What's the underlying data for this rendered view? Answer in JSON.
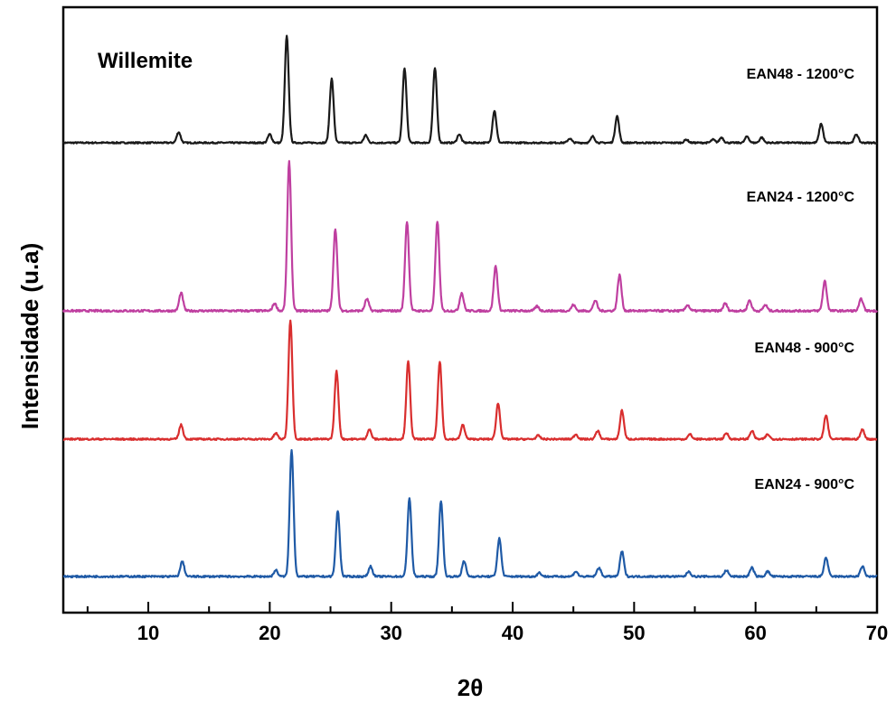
{
  "chart_data": {
    "type": "line",
    "xlabel": "2θ",
    "ylabel": "Intensidade (u.a)",
    "xlim": [
      3,
      70
    ],
    "xticks": [
      10,
      20,
      30,
      40,
      50,
      60,
      70
    ],
    "y_ticks_shown": false,
    "grid": false,
    "legend": "none (series labelled inline at right)",
    "annotation": "Willemite",
    "series": [
      {
        "name": "EAN48 - 1200°C",
        "color": "#1a1a1a",
        "baseline": 0,
        "peaks": [
          [
            12.5,
            10
          ],
          [
            20.0,
            8
          ],
          [
            21.4,
            100
          ],
          [
            25.1,
            60
          ],
          [
            27.9,
            7
          ],
          [
            31.1,
            70
          ],
          [
            33.6,
            70
          ],
          [
            35.6,
            8
          ],
          [
            38.5,
            30
          ],
          [
            44.7,
            4
          ],
          [
            46.6,
            6
          ],
          [
            48.6,
            25
          ],
          [
            54.3,
            3
          ],
          [
            56.5,
            3
          ],
          [
            57.2,
            5
          ],
          [
            59.3,
            6
          ],
          [
            60.5,
            5
          ],
          [
            65.4,
            18
          ],
          [
            68.3,
            8
          ]
        ]
      },
      {
        "name": "EAN24 - 1200°C",
        "color": "#bf3fa0",
        "baseline": 0,
        "peaks": [
          [
            12.7,
            12
          ],
          [
            20.4,
            5
          ],
          [
            21.6,
            100
          ],
          [
            25.4,
            55
          ],
          [
            28.0,
            8
          ],
          [
            31.3,
            60
          ],
          [
            33.8,
            60
          ],
          [
            35.8,
            12
          ],
          [
            38.6,
            30
          ],
          [
            42.0,
            3
          ],
          [
            45.0,
            4
          ],
          [
            46.8,
            7
          ],
          [
            48.8,
            24
          ],
          [
            54.4,
            4
          ],
          [
            57.5,
            5
          ],
          [
            59.5,
            7
          ],
          [
            60.8,
            4
          ],
          [
            65.7,
            20
          ],
          [
            68.7,
            8
          ]
        ]
      },
      {
        "name": "EAN48 - 900°C",
        "color": "#d92e2e",
        "baseline": 0,
        "peaks": [
          [
            12.7,
            12
          ],
          [
            20.5,
            5
          ],
          [
            21.7,
            100
          ],
          [
            25.5,
            57
          ],
          [
            28.2,
            8
          ],
          [
            31.4,
            65
          ],
          [
            34.0,
            65
          ],
          [
            35.9,
            12
          ],
          [
            38.8,
            30
          ],
          [
            42.1,
            3
          ],
          [
            45.2,
            4
          ],
          [
            47.0,
            7
          ],
          [
            49.0,
            24
          ],
          [
            54.6,
            4
          ],
          [
            57.6,
            5
          ],
          [
            59.7,
            7
          ],
          [
            61.0,
            4
          ],
          [
            65.8,
            20
          ],
          [
            68.8,
            8
          ]
        ]
      },
      {
        "name": "EAN24 - 900°C",
        "color": "#1f5aa6",
        "baseline": 0,
        "peaks": [
          [
            12.8,
            12
          ],
          [
            20.5,
            5
          ],
          [
            21.8,
            100
          ],
          [
            25.6,
            52
          ],
          [
            28.3,
            8
          ],
          [
            31.5,
            62
          ],
          [
            34.1,
            60
          ],
          [
            36.0,
            12
          ],
          [
            38.9,
            30
          ],
          [
            42.2,
            3
          ],
          [
            45.2,
            4
          ],
          [
            47.1,
            7
          ],
          [
            49.0,
            20
          ],
          [
            54.5,
            4
          ],
          [
            57.6,
            5
          ],
          [
            59.7,
            7
          ],
          [
            61.0,
            4
          ],
          [
            65.8,
            15
          ],
          [
            68.8,
            8
          ]
        ]
      }
    ]
  }
}
